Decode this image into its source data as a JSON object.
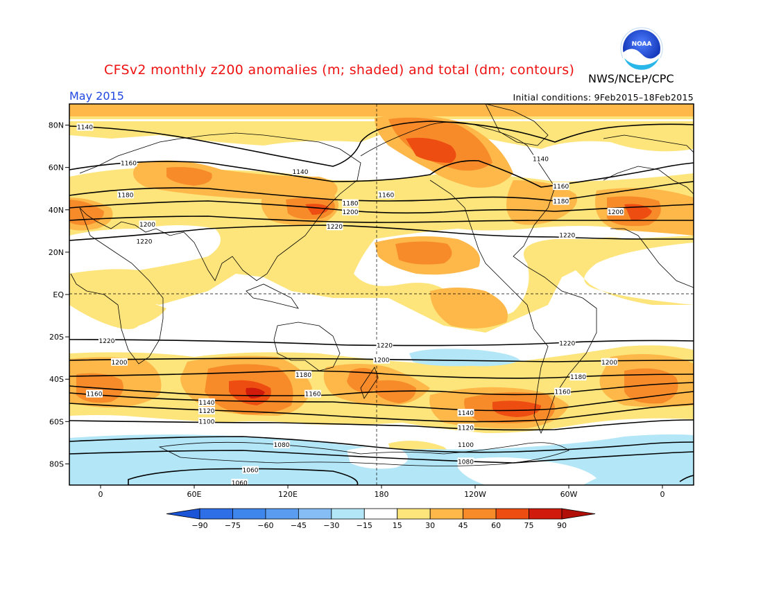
{
  "title": "CFSv2 monthly z200 anomalies (m; shaded) and total (dm; contours)",
  "agency": "NWS/NCEP/CPC",
  "logo_text": "NOAA",
  "valid_month": "May 2015",
  "initial_conditions": "Initial conditions: 9Feb2015–18Feb2015",
  "map": {
    "lon_range": [
      -20,
      380
    ],
    "lat_range": [
      -90,
      90
    ],
    "lat_ticks": [
      {
        "lat": 80,
        "label": "80N"
      },
      {
        "lat": 60,
        "label": "60N"
      },
      {
        "lat": 40,
        "label": "40N"
      },
      {
        "lat": 20,
        "label": "20N"
      },
      {
        "lat": 0,
        "label": "EQ"
      },
      {
        "lat": -20,
        "label": "20S"
      },
      {
        "lat": -40,
        "label": "40S"
      },
      {
        "lat": -60,
        "label": "60S"
      },
      {
        "lat": -80,
        "label": "80S"
      }
    ],
    "lon_ticks": [
      {
        "lon": 0,
        "label": "0"
      },
      {
        "lon": 60,
        "label": "60E"
      },
      {
        "lon": 120,
        "label": "120E"
      },
      {
        "lon": 180,
        "label": "180"
      },
      {
        "lon": 240,
        "label": "120W"
      },
      {
        "lon": 300,
        "label": "60W"
      },
      {
        "lon": 360,
        "label": "0"
      }
    ],
    "contour_labels": [
      {
        "text": "1140",
        "lon": -10,
        "lat": 79
      },
      {
        "text": "1160",
        "lon": 18,
        "lat": 62
      },
      {
        "text": "1140",
        "lon": 128,
        "lat": 58
      },
      {
        "text": "1180",
        "lon": 16,
        "lat": 47
      },
      {
        "text": "1200",
        "lon": 30,
        "lat": 33
      },
      {
        "text": "1220",
        "lon": 28,
        "lat": 25
      },
      {
        "text": "1180",
        "lon": 160,
        "lat": 43
      },
      {
        "text": "1200",
        "lon": 160,
        "lat": 39
      },
      {
        "text": "1220",
        "lon": 150,
        "lat": 32
      },
      {
        "text": "1160",
        "lon": 183,
        "lat": 47
      },
      {
        "text": "1140",
        "lon": 282,
        "lat": 64
      },
      {
        "text": "1160",
        "lon": 295,
        "lat": 51
      },
      {
        "text": "1180",
        "lon": 295,
        "lat": 44
      },
      {
        "text": "1200",
        "lon": 330,
        "lat": 39
      },
      {
        "text": "1220",
        "lon": 299,
        "lat": 28
      },
      {
        "text": "1220",
        "lon": 4,
        "lat": -22
      },
      {
        "text": "1220",
        "lon": 182,
        "lat": -24
      },
      {
        "text": "1220",
        "lon": 299,
        "lat": -23
      },
      {
        "text": "1200",
        "lon": 12,
        "lat": -32
      },
      {
        "text": "1200",
        "lon": 180,
        "lat": -31
      },
      {
        "text": "1200",
        "lon": 326,
        "lat": -32
      },
      {
        "text": "1180",
        "lon": 130,
        "lat": -38
      },
      {
        "text": "1180",
        "lon": 306,
        "lat": -39
      },
      {
        "text": "1160",
        "lon": -4,
        "lat": -47
      },
      {
        "text": "1160",
        "lon": 136,
        "lat": -47
      },
      {
        "text": "1160",
        "lon": 296,
        "lat": -46
      },
      {
        "text": "1140",
        "lon": 68,
        "lat": -51
      },
      {
        "text": "1120",
        "lon": 68,
        "lat": -55
      },
      {
        "text": "1100",
        "lon": 68,
        "lat": -60
      },
      {
        "text": "1140",
        "lon": 234,
        "lat": -56
      },
      {
        "text": "1120",
        "lon": 234,
        "lat": -63
      },
      {
        "text": "1100",
        "lon": 234,
        "lat": -71
      },
      {
        "text": "1080",
        "lon": 116,
        "lat": -71
      },
      {
        "text": "1080",
        "lon": 234,
        "lat": -79
      },
      {
        "text": "1060",
        "lon": 96,
        "lat": -83
      },
      {
        "text": "1060",
        "lon": 89,
        "lat": -89
      }
    ]
  },
  "colorbar": {
    "labels": [
      "−90",
      "−75",
      "−60",
      "−45",
      "−30",
      "−15",
      "15",
      "30",
      "45",
      "60",
      "75",
      "90"
    ],
    "colors": [
      "#2e6fe8",
      "#3f86ec",
      "#5a9df0",
      "#86bdf5",
      "#b3e6f7",
      "#ffffff",
      "#fde57c",
      "#fdb849",
      "#f78b2a",
      "#ee4d12",
      "#cf1a0c"
    ],
    "end_low_color": "#1a55d8",
    "end_high_color": "#b01008"
  },
  "colors": {
    "c15": "#fde57c",
    "c30": "#fdb849",
    "c45": "#f78b2a",
    "c60": "#ee4d12",
    "cneg15": "#b3e6f7",
    "title": "#ee1111",
    "month": "#1f46e0"
  }
}
